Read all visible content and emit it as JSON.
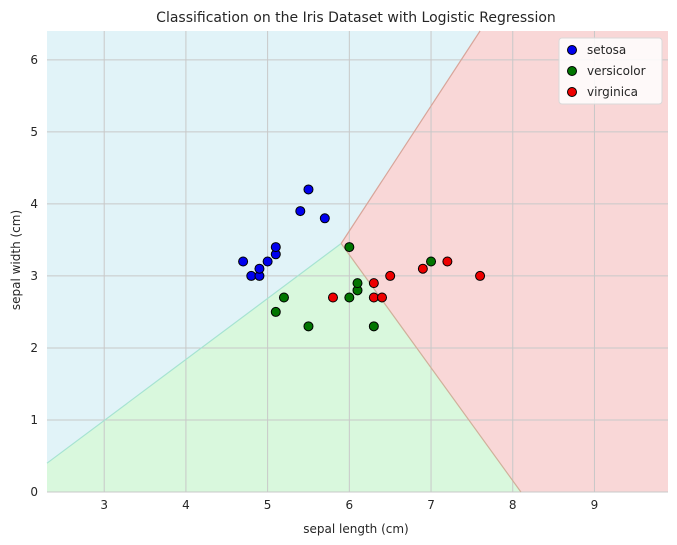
{
  "chart_data": {
    "type": "scatter",
    "title": "Classification on the Iris Dataset with Logistic Regression",
    "xlabel": "sepal length (cm)",
    "ylabel": "sepal width (cm)",
    "xlim": [
      2.3,
      9.9
    ],
    "ylim": [
      0,
      6.4
    ],
    "x_ticks": [
      "3",
      "4",
      "5",
      "6",
      "7",
      "8",
      "9"
    ],
    "y_ticks": [
      "0",
      "1",
      "2",
      "3",
      "4",
      "5",
      "6"
    ],
    "grid": true,
    "legend_position": "top-right",
    "regions": [
      {
        "class": "setosa",
        "color": "#e1f3f8"
      },
      {
        "class": "versicolor",
        "color": "#d9f8dd"
      },
      {
        "class": "virginica",
        "color": "#f9d7d7"
      }
    ],
    "boundary_points": {
      "junction": [
        5.9,
        3.45
      ],
      "setosa_versicolor_end": [
        2.3,
        0.4
      ],
      "setosa_virginica_end": [
        7.6,
        6.4
      ],
      "versicolor_virginica_end": [
        8.1,
        0
      ]
    },
    "series": [
      {
        "name": "setosa",
        "color": "#0000ee",
        "points": [
          [
            4.7,
            3.2
          ],
          [
            4.8,
            3.0
          ],
          [
            4.9,
            3.0
          ],
          [
            4.9,
            3.1
          ],
          [
            5.0,
            3.2
          ],
          [
            5.1,
            3.3
          ],
          [
            5.1,
            3.4
          ],
          [
            5.4,
            3.9
          ],
          [
            5.5,
            4.2
          ],
          [
            5.7,
            3.8
          ]
        ]
      },
      {
        "name": "versicolor",
        "color": "#007500",
        "points": [
          [
            5.1,
            2.5
          ],
          [
            5.2,
            2.7
          ],
          [
            5.5,
            2.3
          ],
          [
            6.0,
            2.7
          ],
          [
            6.0,
            3.4
          ],
          [
            6.1,
            2.8
          ],
          [
            6.1,
            2.9
          ],
          [
            6.3,
            2.3
          ],
          [
            7.0,
            3.2
          ]
        ]
      },
      {
        "name": "virginica",
        "color": "#ee0000",
        "points": [
          [
            5.8,
            2.7
          ],
          [
            6.3,
            2.7
          ],
          [
            6.3,
            2.9
          ],
          [
            6.4,
            2.7
          ],
          [
            6.5,
            3.0
          ],
          [
            6.9,
            3.1
          ],
          [
            7.2,
            3.2
          ],
          [
            7.6,
            3.0
          ]
        ]
      }
    ]
  }
}
